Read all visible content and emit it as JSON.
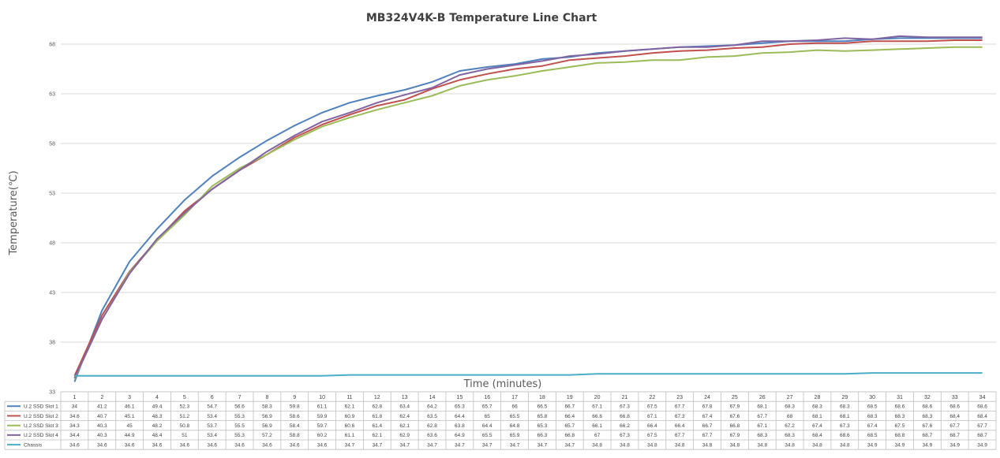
{
  "chart_data": {
    "type": "line",
    "title": "MB324V4K-B Temperature Line Chart",
    "xlabel": "Time (minutes)",
    "ylabel": "Temperature(℃)",
    "ylim": [
      33,
      70
    ],
    "yticks": [
      33,
      38,
      43,
      48,
      53,
      58,
      63,
      68
    ],
    "grid": true,
    "legend": "data-table-left",
    "categories": [
      "1",
      "2",
      "3",
      "4",
      "5",
      "6",
      "7",
      "8",
      "9",
      "10",
      "11",
      "12",
      "13",
      "14",
      "15",
      "16",
      "17",
      "18",
      "19",
      "20",
      "21",
      "22",
      "23",
      "24",
      "25",
      "26",
      "27",
      "28",
      "29",
      "30",
      "31",
      "32",
      "33",
      "34"
    ],
    "series": [
      {
        "name": "U.2 SSD Slot 1",
        "color": "#4F81BD",
        "values": [
          "34",
          "41.2",
          "46.1",
          "49.4",
          "52.3",
          "54.7",
          "56.6",
          "58.3",
          "59.8",
          "61.1",
          "62.1",
          "62.8",
          "63.4",
          "64.2",
          "65.3",
          "65.7",
          "66",
          "66.5",
          "66.7",
          "67.1",
          "67.3",
          "67.5",
          "67.7",
          "67.8",
          "67.9",
          "68.1",
          "68.3",
          "68.3",
          "68.3",
          "68.5",
          "68.6",
          "68.6",
          "68.6",
          "68.6"
        ]
      },
      {
        "name": "U.2 SSD Slot 2",
        "color": "#C0504D",
        "values": [
          "34.6",
          "40.7",
          "45.1",
          "48.3",
          "51.2",
          "53.4",
          "55.3",
          "56.9",
          "58.6",
          "59.9",
          "60.9",
          "61.8",
          "62.4",
          "63.5",
          "64.4",
          "65",
          "65.5",
          "65.8",
          "66.4",
          "66.6",
          "66.8",
          "67.1",
          "67.3",
          "67.4",
          "67.6",
          "67.7",
          "68",
          "68.1",
          "68.1",
          "68.3",
          "68.3",
          "68.3",
          "68.4",
          "68.4"
        ]
      },
      {
        "name": "U.2 SSD Slot 3",
        "color": "#9BBB59",
        "values": [
          "34.3",
          "40.3",
          "45",
          "48.2",
          "50.8",
          "53.7",
          "55.5",
          "56.9",
          "58.4",
          "59.7",
          "60.6",
          "61.4",
          "62.1",
          "62.8",
          "63.8",
          "64.4",
          "64.8",
          "65.3",
          "65.7",
          "66.1",
          "66.2",
          "66.4",
          "66.4",
          "66.7",
          "66.8",
          "67.1",
          "67.2",
          "67.4",
          "67.3",
          "67.4",
          "67.5",
          "67.6",
          "67.7",
          "67.7"
        ]
      },
      {
        "name": "U.2 SSD Slot 4",
        "color": "#8064A2",
        "values": [
          "34.4",
          "40.3",
          "44.9",
          "48.4",
          "51",
          "53.4",
          "55.3",
          "57.2",
          "58.8",
          "60.2",
          "61.1",
          "62.1",
          "62.9",
          "63.6",
          "64.9",
          "65.5",
          "65.9",
          "66.3",
          "66.8",
          "67",
          "67.3",
          "67.5",
          "67.7",
          "67.7",
          "67.9",
          "68.3",
          "68.3",
          "68.4",
          "68.6",
          "68.5",
          "68.8",
          "68.7",
          "68.7",
          "68.7"
        ]
      },
      {
        "name": "Chassis",
        "color": "#4BACC6",
        "values": [
          "34.6",
          "34.6",
          "34.6",
          "34.6",
          "34.6",
          "34.6",
          "34.6",
          "34.6",
          "34.6",
          "34.6",
          "34.7",
          "34.7",
          "34.7",
          "34.7",
          "34.7",
          "34.7",
          "34.7",
          "34.7",
          "34.7",
          "34.8",
          "34.8",
          "34.8",
          "34.8",
          "34.8",
          "34.8",
          "34.8",
          "34.8",
          "34.8",
          "34.8",
          "34.9",
          "34.9",
          "34.9",
          "34.9",
          "34.9"
        ]
      }
    ]
  }
}
